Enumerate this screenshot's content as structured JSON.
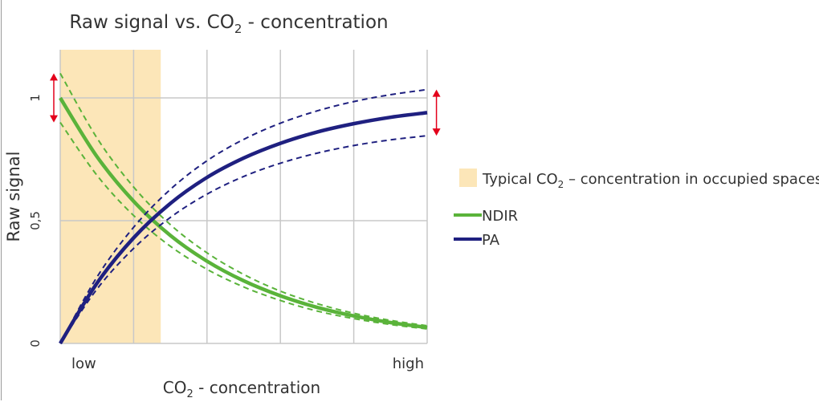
{
  "chart_data": {
    "type": "line",
    "title": {
      "prefix": "Raw signal vs. CO",
      "sub": "2",
      "suffix": " - concentration"
    },
    "xlabel": {
      "prefix": "CO",
      "sub": "2",
      "suffix": " - concentration"
    },
    "ylabel": "Raw signal",
    "x_tick_labels": [
      {
        "x": 0,
        "label": "low"
      },
      {
        "x": 5,
        "label": "high"
      }
    ],
    "y_ticks": [
      {
        "y": 0,
        "label": "0"
      },
      {
        "y": 0.5,
        "label": "0,5"
      },
      {
        "y": 1,
        "label": "1"
      }
    ],
    "xlim": [
      0,
      5
    ],
    "ylim": [
      0,
      1.2
    ],
    "grid": true,
    "x_grid": [
      0,
      1,
      2,
      3,
      4,
      5
    ],
    "y_grid": [
      0,
      0.5,
      1
    ],
    "shaded_region": {
      "x": [
        0,
        1.37
      ],
      "color": "#fce6b8",
      "label": {
        "prefix": "Typical CO",
        "sub": "2",
        "suffix": " – concentration in occupied spaces"
      }
    },
    "x": [
      0,
      0.5,
      1,
      1.5,
      2,
      2.5,
      3,
      3.5,
      4,
      4.5,
      5
    ],
    "series": [
      {
        "name": "NDIR",
        "color": "#5ab33a",
        "values": [
          1,
          0.761,
          0.579,
          0.44,
          0.335,
          0.255,
          0.194,
          0.147,
          0.112,
          0.085,
          0.065
        ],
        "upper": [
          1.1,
          0.837,
          0.637,
          0.484,
          0.369,
          0.281,
          0.213,
          0.162,
          0.123,
          0.094,
          0.072
        ],
        "lower": [
          0.9,
          0.685,
          0.521,
          0.396,
          0.302,
          0.23,
          0.175,
          0.132,
          0.101,
          0.077,
          0.059
        ]
      },
      {
        "name": "PA",
        "color": "#1f2080",
        "values": [
          0,
          0.245,
          0.43,
          0.57,
          0.676,
          0.755,
          0.815,
          0.861,
          0.895,
          0.921,
          0.94
        ],
        "upper": [
          0,
          0.27,
          0.473,
          0.627,
          0.744,
          0.831,
          0.897,
          0.947,
          0.985,
          1.013,
          1.034
        ],
        "lower": [
          0,
          0.221,
          0.387,
          0.513,
          0.608,
          0.68,
          0.734,
          0.775,
          0.806,
          0.829,
          0.846
        ]
      }
    ],
    "annotations": [
      {
        "type": "double-arrow",
        "x": 0,
        "y": [
          0.9,
          1.1
        ],
        "color": "#e3001b"
      },
      {
        "type": "double-arrow",
        "x": 5.05,
        "y": [
          0.846,
          1.034
        ],
        "color": "#e3001b"
      }
    ],
    "legend_placement": "right"
  }
}
